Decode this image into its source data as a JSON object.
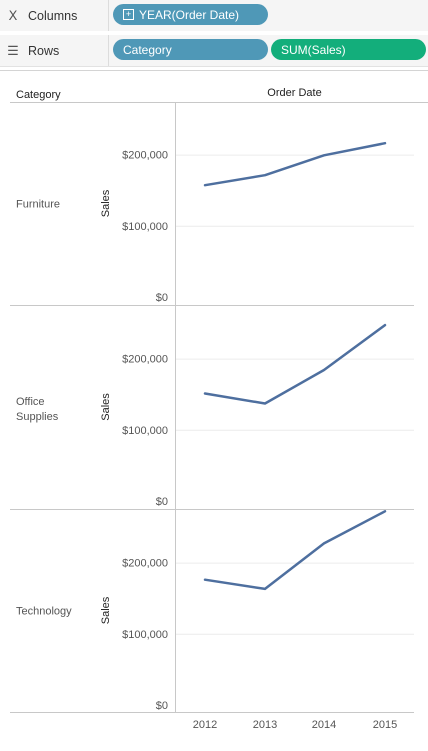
{
  "columns_shelf": {
    "label": "Columns",
    "icon": "columns-icon",
    "pills": [
      {
        "label": "YEAR(Order Date)",
        "color": "#4f98b7",
        "icon": "plus-box-icon"
      }
    ]
  },
  "rows_shelf": {
    "label": "Rows",
    "icon": "rows-icon",
    "pills": [
      {
        "label": "Category",
        "color": "#4f98b7"
      },
      {
        "label": "SUM(Sales)",
        "color": "#13ae7b"
      }
    ]
  },
  "chart_data": {
    "type": "line",
    "row_header_title": "Category",
    "column_header_title": "Order Date",
    "x": [
      "2012",
      "2013",
      "2014",
      "2015"
    ],
    "ylabel": "Sales",
    "ylim": [
      0,
      290000
    ],
    "y_ticks": [
      {
        "value": 0,
        "label": "$0"
      },
      {
        "value": 100000,
        "label": "$100,000"
      },
      {
        "value": 200000,
        "label": "$200,000"
      }
    ],
    "line_color": "#4e6f9f",
    "panes": [
      {
        "category": "Furniture",
        "values": [
          157000,
          171000,
          199000,
          216000
        ]
      },
      {
        "category": "Office Supplies",
        "values": [
          151000,
          137000,
          184000,
          247000
        ]
      },
      {
        "category": "Technology",
        "values": [
          176000,
          163000,
          227000,
          272000
        ]
      }
    ]
  }
}
